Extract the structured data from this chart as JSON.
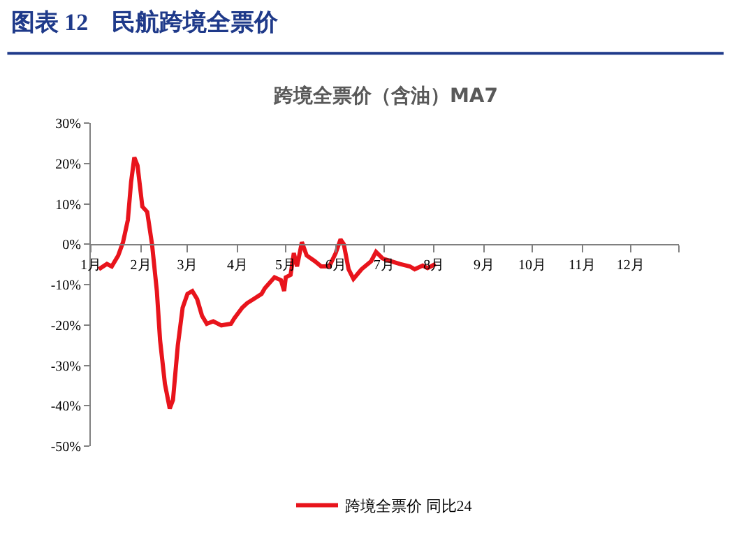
{
  "chart_data": {
    "type": "line",
    "title": "图表 12　民航跨境全票价",
    "subtitle": "跨境全票价（含油）MA7",
    "x": [
      "--01-06",
      "--01-11",
      "--01-14",
      "--01-18",
      "--01-21",
      "--01-24",
      "--01-26",
      "--01-28",
      "--01-30",
      "--02-02",
      "--02-05",
      "--02-08",
      "--02-11",
      "--02-13",
      "--02-16",
      "--02-19",
      "--02-21",
      "--02-24",
      "--02-27",
      "--03-01",
      "--03-04",
      "--03-07",
      "--03-10",
      "--03-13",
      "--03-17",
      "--03-22",
      "--03-28",
      "--03-30",
      "--04-04",
      "--04-07",
      "--04-11",
      "--04-16",
      "--04-18",
      "--04-24",
      "--04-28",
      "--04-30",
      "--05-01",
      "--05-04",
      "--05-06",
      "--05-08",
      "--05-11",
      "--05-14",
      "--05-19",
      "--05-23",
      "--05-28",
      "--06-01",
      "--06-04",
      "--06-06",
      "--06-09",
      "--06-12",
      "--06-17",
      "--06-23",
      "--06-26",
      "--06-30",
      "--07-02",
      "--07-05",
      "--07-11",
      "--07-17",
      "--07-20",
      "--07-25",
      "--07-28",
      "--08-02"
    ],
    "series": [
      {
        "name": "跨境全票价 同比24",
        "color": "#e8141c",
        "values": [
          -6.2,
          -4.9,
          -5.5,
          -2.8,
          0.5,
          6,
          15.4,
          21.5,
          19.5,
          9.3,
          8,
          0,
          -11.6,
          -23.8,
          -34.6,
          -40.7,
          -38.6,
          -25.1,
          -15.7,
          -12.3,
          -11.6,
          -13.6,
          -17.7,
          -19.7,
          -19.1,
          -20.1,
          -19.7,
          -18.4,
          -15.7,
          -14.6,
          -13.6,
          -12.3,
          -10.9,
          -8.2,
          -8.9,
          -11.6,
          -8.2,
          -7.6,
          -2.2,
          -5.5,
          0.5,
          -2.8,
          -4.2,
          -5.5,
          -5.5,
          -2.2,
          1.2,
          0,
          -6.2,
          -8.6,
          -6.2,
          -4.2,
          -1.9,
          -3.5,
          -3.8,
          -4.2,
          -4.9,
          -5.5,
          -6.2,
          -5.3,
          -5.9,
          -4.9
        ]
      }
    ],
    "xlim": [
      "--01-01",
      "--12-31"
    ],
    "xticks": [
      {
        "value": "--01-01",
        "label": "1月"
      },
      {
        "value": "--02-01",
        "label": "2月"
      },
      {
        "value": "--03-01",
        "label": "3月"
      },
      {
        "value": "--04-01",
        "label": "4月"
      },
      {
        "value": "--05-01",
        "label": "5月"
      },
      {
        "value": "--06-01",
        "label": "6月"
      },
      {
        "value": "--07-01",
        "label": "7月"
      },
      {
        "value": "--08-01",
        "label": "8月"
      },
      {
        "value": "--09-01",
        "label": "9月"
      },
      {
        "value": "--10-01",
        "label": "10月"
      },
      {
        "value": "--11-01",
        "label": "11月"
      },
      {
        "value": "--12-01",
        "label": "12月"
      },
      {
        "value": "--12-31",
        "label": null
      }
    ],
    "ylim": [
      -50,
      30
    ],
    "yticks": [
      {
        "value": 30,
        "label": "30%"
      },
      {
        "value": 20,
        "label": "20%"
      },
      {
        "value": 10,
        "label": "10%"
      },
      {
        "value": 0,
        "label": "0%"
      },
      {
        "value": -10,
        "label": "-10%"
      },
      {
        "value": -20,
        "label": "-20%"
      },
      {
        "value": -30,
        "label": "-30%"
      },
      {
        "value": -40,
        "label": "-40%"
      },
      {
        "value": -50,
        "label": "-50%"
      }
    ],
    "legend": "bottom",
    "marker": "none",
    "line_style": "solid"
  }
}
